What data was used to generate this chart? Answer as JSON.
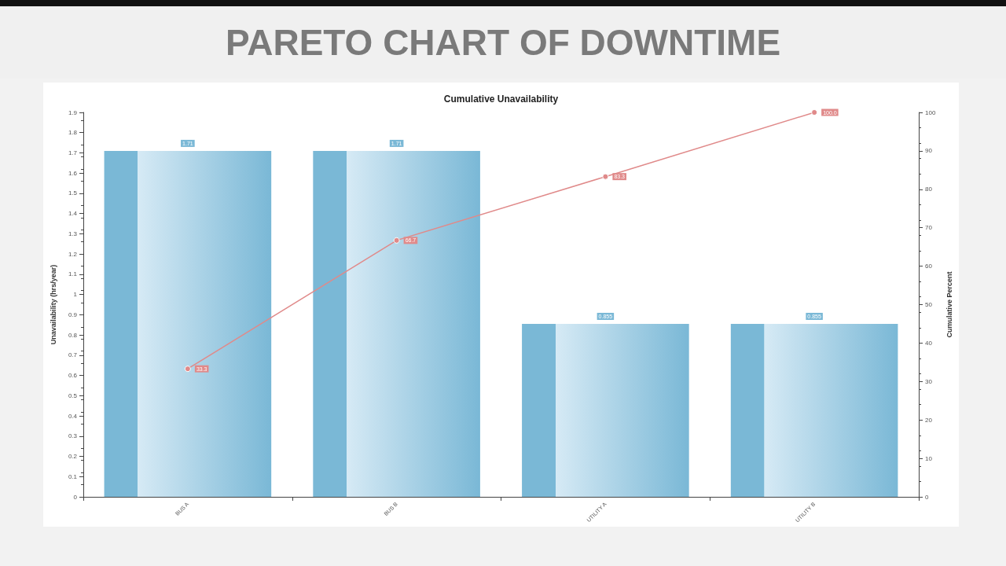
{
  "chart_data": {
    "type": "bar",
    "title": "PARETO CHART OF DOWNTIME",
    "subtitle": "Cumulative Unavailability",
    "ylabel": "Unavailability (hrs/year)",
    "y2label": "Cumulative Percent",
    "categories": [
      "BUS A",
      "BUS B",
      "UTILITY A",
      "UTILITY B"
    ],
    "series": [
      {
        "color": "#7ab8d6",
        "values": [
          1.71,
          1.71,
          0.855,
          0.855
        ]
      },
      {
        "type": "line",
        "axis": "y2",
        "color": "#e08a8a",
        "marker": "circle",
        "values": [
          33.3,
          66.7,
          83.3,
          100.0
        ],
        "value_labels": [
          "33.3",
          "66.7",
          "83.3",
          "100.0"
        ]
      }
    ],
    "data_labels": true,
    "ylim": [
      0,
      1.9
    ],
    "yticks": [
      0,
      0.1,
      0.2,
      0.3,
      0.4,
      0.5,
      0.6,
      0.7,
      0.8,
      0.9,
      1,
      1.1,
      1.2,
      1.3,
      1.4,
      1.5,
      1.6,
      1.7,
      1.8,
      1.9
    ],
    "y2lim": [
      0,
      100
    ],
    "y2ticks": [
      0,
      10,
      20,
      30,
      40,
      50,
      60,
      70,
      80,
      90,
      100
    ],
    "grid": false
  }
}
